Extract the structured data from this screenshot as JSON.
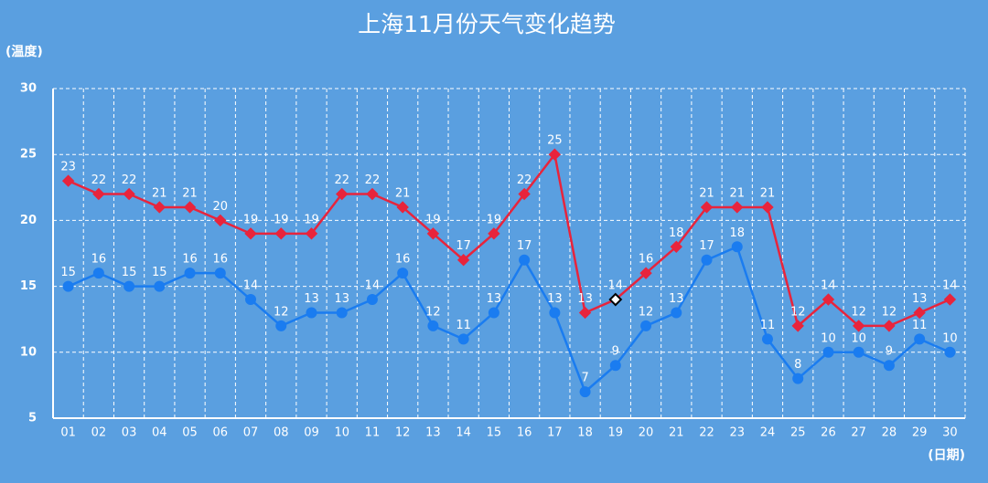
{
  "chart_data": {
    "type": "line",
    "title": "上海11月份天气变化趋势",
    "ylabel": "(温度)",
    "xlabel": "(日期)",
    "categories": [
      "01",
      "02",
      "03",
      "04",
      "05",
      "06",
      "07",
      "08",
      "09",
      "10",
      "11",
      "12",
      "13",
      "14",
      "15",
      "16",
      "17",
      "18",
      "19",
      "20",
      "21",
      "22",
      "23",
      "24",
      "25",
      "26",
      "27",
      "28",
      "29",
      "30"
    ],
    "series": [
      {
        "color": "#e8243c",
        "marker": "diamond",
        "highlight_index": 18,
        "values": [
          23,
          22,
          22,
          21,
          21,
          20,
          19,
          19,
          19,
          22,
          22,
          21,
          19,
          17,
          19,
          22,
          25,
          13,
          14,
          16,
          18,
          21,
          21,
          21,
          12,
          14,
          12,
          12,
          13,
          14
        ]
      },
      {
        "color": "#1a7cf0",
        "marker": "circle",
        "values": [
          15,
          16,
          15,
          15,
          16,
          16,
          14,
          12,
          13,
          13,
          14,
          16,
          12,
          11,
          13,
          17,
          13,
          7,
          9,
          12,
          13,
          17,
          18,
          11,
          8,
          10,
          10,
          9,
          11,
          10
        ]
      }
    ],
    "ylim": [
      5,
      30
    ],
    "yticks": [
      5,
      10,
      15,
      20,
      25,
      30
    ],
    "grid": true
  }
}
